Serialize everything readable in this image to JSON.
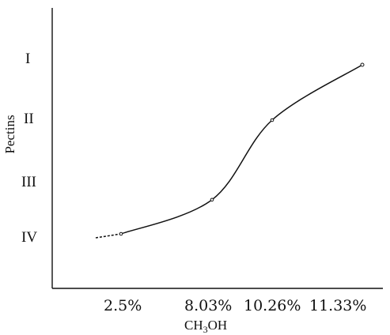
{
  "chart_data": {
    "type": "line",
    "title": "",
    "xlabel_parts": [
      "CH",
      "3",
      "OH"
    ],
    "ylabel": "Pectins",
    "categories": [
      "2.5%",
      "8.03%",
      "10.26%",
      "11.33%"
    ],
    "y_tick_labels": [
      "I",
      "II",
      "III",
      "IV"
    ],
    "x": [
      2.5,
      8.03,
      10.26,
      11.33
    ],
    "series": [
      {
        "values": [
          4,
          3.4,
          2,
          1
        ]
      }
    ],
    "grid": false
  }
}
